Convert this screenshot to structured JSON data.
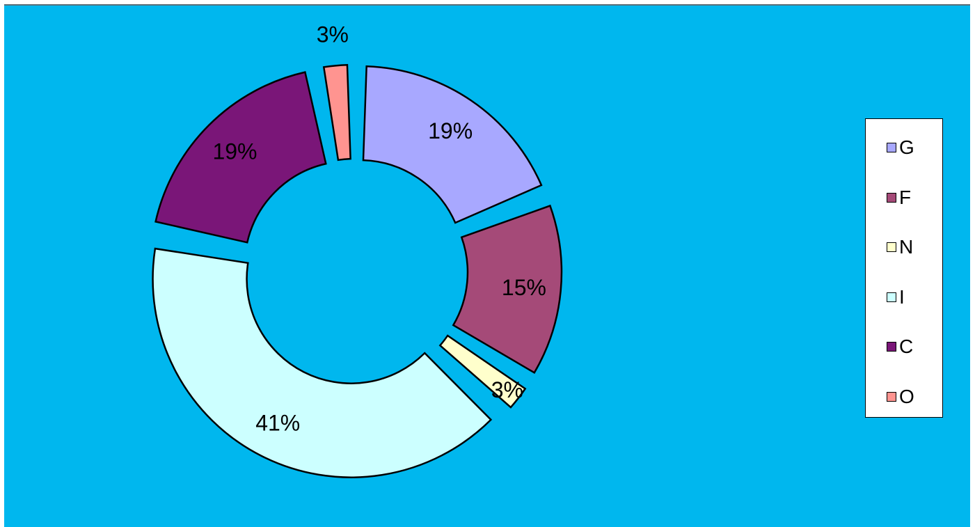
{
  "chart_data": {
    "type": "pie",
    "variant": "exploded-donut",
    "categories": [
      "G",
      "F",
      "N",
      "I",
      "C",
      "O"
    ],
    "values": [
      19,
      15,
      3,
      41,
      19,
      3
    ],
    "labels": [
      "19%",
      "15%",
      "3%",
      "41%",
      "19%",
      "3%"
    ],
    "colors": [
      "#a8a8ff",
      "#a54a78",
      "#ffffcc",
      "#ccffff",
      "#7a1678",
      "#ff9490"
    ],
    "legend_position": "right",
    "background_color": "#00b7ee"
  }
}
